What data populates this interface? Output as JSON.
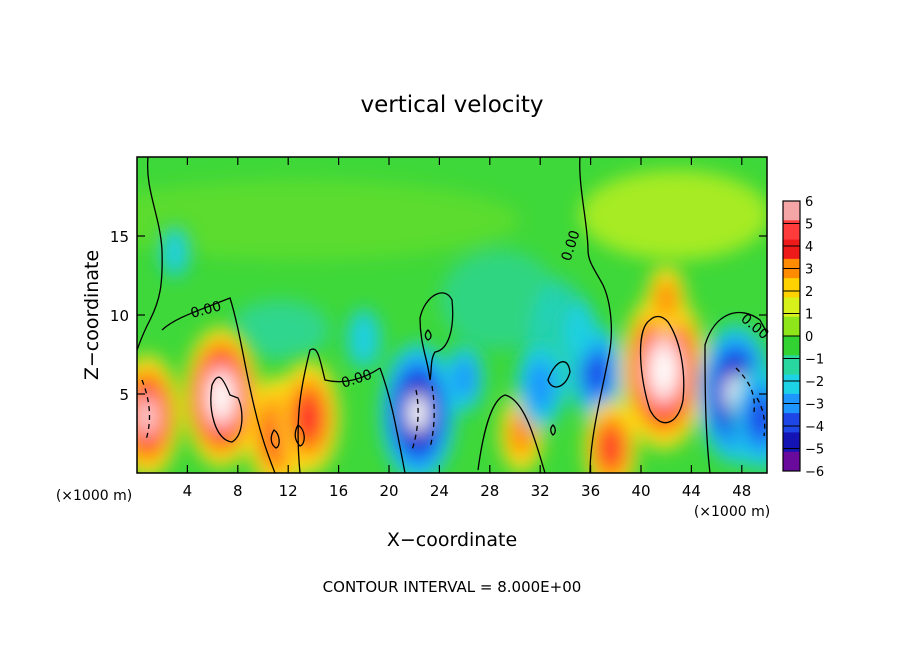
{
  "chart_data": {
    "type": "heatmap",
    "title": "vertical velocity",
    "xlabel": "X−coordinate",
    "ylabel": "Z−coordinate",
    "x_unit_left": "(×1000 m)",
    "x_unit_right": "(×1000 m)",
    "footer": "CONTOUR INTERVAL = 8.000E+00",
    "xlim": [
      0,
      50
    ],
    "ylim": [
      0,
      20
    ],
    "x_ticks": [
      4,
      8,
      12,
      16,
      20,
      24,
      28,
      32,
      36,
      40,
      44,
      48
    ],
    "y_ticks": [
      5,
      10,
      15
    ],
    "contour_labels": [
      "0.00",
      "0.00",
      "0.00",
      "0.00"
    ],
    "colorbar": {
      "labels": [
        "6",
        "5",
        "4",
        "3",
        "2",
        "1",
        "0",
        "−1",
        "−2",
        "−3",
        "−4",
        "−5",
        "−6"
      ],
      "colors": [
        "#f4a6a6",
        "#ff3b3b",
        "#ee1a1a",
        "#ff8c00",
        "#ffd200",
        "#d6f21a",
        "#8ee61a",
        "#32d232",
        "#28d6a0",
        "#1ed2e6",
        "#1e96ff",
        "#1e46e6",
        "#1414b4",
        "#6a0a9c"
      ]
    },
    "features": [
      {
        "x": 0.8,
        "z": 3.6,
        "value": 10
      },
      {
        "x": 6.7,
        "z": 4.8,
        "value": 12
      },
      {
        "x": 11.2,
        "z": 2.5,
        "value": 9
      },
      {
        "x": 13.6,
        "z": 3.5,
        "value": 9
      },
      {
        "x": 22.3,
        "z": 3.8,
        "value": -12
      },
      {
        "x": 26.0,
        "z": 6.0,
        "value": -4
      },
      {
        "x": 30.5,
        "z": 2.5,
        "value": 5
      },
      {
        "x": 32.0,
        "z": 5.5,
        "value": -6
      },
      {
        "x": 36.5,
        "z": 6.3,
        "value": -7
      },
      {
        "x": 37.6,
        "z": 1.6,
        "value": 7
      },
      {
        "x": 41.8,
        "z": 6.5,
        "value": 14
      },
      {
        "x": 42.0,
        "z": 11.0,
        "value": 4
      },
      {
        "x": 47.5,
        "z": 5.0,
        "value": -12
      },
      {
        "x": 49.5,
        "z": 3.5,
        "value": -8
      },
      {
        "x": 3.0,
        "z": 14.0,
        "value": -2
      },
      {
        "x": 18.0,
        "z": 8.5,
        "value": -3
      },
      {
        "x": 35.0,
        "z": 9.0,
        "value": -3
      }
    ]
  }
}
